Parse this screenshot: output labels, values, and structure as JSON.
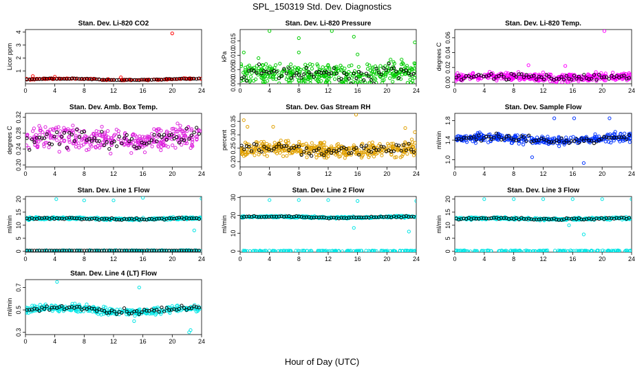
{
  "figure": {
    "title": "SPL_150319  Std. Dev. Diagnostics",
    "xlabel": "Hour of Day (UTC)"
  },
  "chart_data": [
    {
      "type": "scatter",
      "title": "Stan. Dev. Li-820 CO2",
      "ylabel": "Licor ppm",
      "xlim": [
        0,
        24
      ],
      "ylim": [
        0,
        4.2
      ],
      "xticks": [
        "0",
        "4",
        "8",
        "12",
        "16",
        "20",
        "24"
      ],
      "yticks": [
        {
          "v": 1,
          "l": "1"
        },
        {
          "v": 2,
          "l": "2"
        },
        {
          "v": 3,
          "l": "3"
        },
        {
          "v": 4,
          "l": "4"
        }
      ],
      "colors": {
        "primary": "#ff0000",
        "secondary": "#000000"
      },
      "profile": {
        "base": 0.35,
        "amp": 0.05,
        "spread": 0.05,
        "n": 150,
        "lo": 0.25
      },
      "series": [
        {
          "role": "primary",
          "values": [
            {
              "x": 20,
              "y": 3.9
            },
            {
              "x": 1,
              "y": 0.6
            },
            {
              "x": 4,
              "y": 0.55
            },
            {
              "x": 13,
              "y": 0.5
            }
          ]
        }
      ]
    },
    {
      "type": "scatter",
      "title": "Stan. Dev. Li-820 Pressure",
      "ylabel": "kPa",
      "xlim": [
        0,
        24
      ],
      "ylim": [
        0,
        0.019
      ],
      "xticks": [
        "0",
        "4",
        "8",
        "12",
        "16",
        "20",
        "24"
      ],
      "yticks": [
        {
          "v": 0,
          "l": "0.000"
        },
        {
          "v": 0.005,
          "l": "0.005"
        },
        {
          "v": 0.01,
          "l": "0.010"
        },
        {
          "v": 0.015,
          "l": "0.015"
        }
      ],
      "colors": {
        "primary": "#00cc00",
        "secondary": "#000000"
      },
      "profile": {
        "base": 0.0035,
        "amp": 0.0005,
        "spread": 0.0035,
        "n": 380,
        "lo": 0,
        "hiDense": 0.007
      },
      "series": [
        {
          "role": "primary",
          "values": [
            {
              "x": 4,
              "y": 0.0185
            },
            {
              "x": 12.5,
              "y": 0.0185
            },
            {
              "x": 8,
              "y": 0.016
            },
            {
              "x": 15.5,
              "y": 0.0165
            },
            {
              "x": 23.8,
              "y": 0.0145
            },
            {
              "x": 0.5,
              "y": 0.011
            },
            {
              "x": 8,
              "y": 0.011
            },
            {
              "x": 16,
              "y": 0.0103
            },
            {
              "x": 20.5,
              "y": 0.0085
            },
            {
              "x": 22,
              "y": 0.0085
            },
            {
              "x": 2.5,
              "y": 0.009
            }
          ]
        }
      ]
    },
    {
      "type": "scatter",
      "title": "Stan. Dev. Li-820 Temp.",
      "ylabel": "degrees C",
      "xlim": [
        0,
        24
      ],
      "ylim": [
        -0.002,
        0.071
      ],
      "xticks": [
        "0",
        "4",
        "8",
        "12",
        "16",
        "20",
        "24"
      ],
      "yticks": [
        {
          "v": 0,
          "l": "0.00"
        },
        {
          "v": 0.02,
          "l": "0.02"
        },
        {
          "v": 0.04,
          "l": "0.04"
        },
        {
          "v": 0.06,
          "l": "0.06"
        }
      ],
      "colors": {
        "primary": "#ff00ff",
        "secondary": "#000000"
      },
      "profile": {
        "base": 0.007,
        "amp": 0.001,
        "spread": 0.006,
        "n": 380,
        "lo": 0
      },
      "series": [
        {
          "role": "primary",
          "values": [
            {
              "x": 20.3,
              "y": 0.069
            },
            {
              "x": 10,
              "y": 0.023
            },
            {
              "x": 15,
              "y": 0.022
            }
          ]
        }
      ]
    },
    {
      "type": "scatter",
      "title": "Stan. Dev. Amb. Box Temp.",
      "ylabel": "degrees C",
      "xlim": [
        0,
        24
      ],
      "ylim": [
        0.195,
        0.33
      ],
      "xticks": [
        "0",
        "4",
        "8",
        "12",
        "16",
        "20",
        "24"
      ],
      "yticks": [
        {
          "v": 0.2,
          "l": "0.20"
        },
        {
          "v": 0.24,
          "l": "0.24"
        },
        {
          "v": 0.28,
          "l": "0.28"
        },
        {
          "v": 0.32,
          "l": "0.32"
        }
      ],
      "colors": {
        "primary": "#dd22dd",
        "secondary": "#000000"
      },
      "profile": {
        "base": 0.265,
        "amp": 0.005,
        "spread": 0.03,
        "n": 360,
        "lo": 0.2,
        "hi": 0.325
      },
      "series": [
        {
          "role": "primary",
          "values": []
        }
      ]
    },
    {
      "type": "scatter",
      "title": "Stan. Dev. Gas Stream RH",
      "ylabel": "percent",
      "xlim": [
        0,
        24
      ],
      "ylim": [
        0.18,
        0.38
      ],
      "xticks": [
        "0",
        "4",
        "8",
        "12",
        "16",
        "20",
        "24"
      ],
      "yticks": [
        {
          "v": 0.2,
          "l": "0.20"
        },
        {
          "v": 0.25,
          "l": "0.25"
        },
        {
          "v": 0.3,
          "l": "0.30"
        },
        {
          "v": 0.35,
          "l": "0.35"
        }
      ],
      "colors": {
        "primary": "#e0a000",
        "secondary": "#000000"
      },
      "profile": {
        "base": 0.245,
        "amp": 0.005,
        "spread": 0.03,
        "n": 420,
        "lo": 0.2,
        "hi": 0.37
      },
      "series": [
        {
          "role": "primary",
          "values": [
            {
              "x": 15.8,
              "y": 0.375
            },
            {
              "x": 0.5,
              "y": 0.355
            },
            {
              "x": 1,
              "y": 0.33
            },
            {
              "x": 4.5,
              "y": 0.33
            },
            {
              "x": 22.5,
              "y": 0.325
            },
            {
              "x": 23.8,
              "y": 0.31
            }
          ]
        }
      ]
    },
    {
      "type": "scatter",
      "title": "Stan. Dev. Sample Flow",
      "ylabel": "ml/min",
      "xlim": [
        0,
        24
      ],
      "ylim": [
        0.85,
        1.95
      ],
      "xticks": [
        "0",
        "4",
        "8",
        "12",
        "16",
        "20",
        "24"
      ],
      "yticks": [
        {
          "v": 1.0,
          "l": "1.0"
        },
        {
          "v": 1.4,
          "l": "1.4"
        },
        {
          "v": 1.8,
          "l": "1.8"
        }
      ],
      "colors": {
        "primary": "#0033ff",
        "secondary": "#000000"
      },
      "profile": {
        "base": 1.42,
        "amp": 0.04,
        "spread": 0.1,
        "n": 360,
        "lo": 1.0,
        "hi": 1.9
      },
      "series": [
        {
          "role": "primary",
          "values": [
            {
              "x": 17.5,
              "y": 0.93
            },
            {
              "x": 10.5,
              "y": 1.05
            },
            {
              "x": 13.5,
              "y": 1.85
            },
            {
              "x": 16.2,
              "y": 1.85
            },
            {
              "x": 21,
              "y": 1.85
            }
          ]
        }
      ]
    },
    {
      "type": "scatter",
      "title": "Stan. Dev. Line 1 Flow",
      "ylabel": "ml/min",
      "xlim": [
        0,
        24
      ],
      "ylim": [
        -0.3,
        21
      ],
      "xticks": [
        "0",
        "4",
        "8",
        "12",
        "16",
        "20",
        "24"
      ],
      "yticks": [
        {
          "v": 0,
          "l": "0"
        },
        {
          "v": 5,
          "l": "5"
        },
        {
          "v": 10,
          "l": "10"
        },
        {
          "v": 15,
          "l": "15"
        },
        {
          "v": 20,
          "l": "20"
        }
      ],
      "colors": {
        "primary": "#00e5e5",
        "secondary": "#000000"
      },
      "profile": {
        "base": 12.5,
        "amp": 0.2,
        "spread": 0.5,
        "n": 360,
        "band2": 1.0,
        "blackBand": 1.0
      },
      "series": [
        {
          "role": "primary",
          "values": [
            {
              "x": 4.2,
              "y": 20
            },
            {
              "x": 8,
              "y": 19.5
            },
            {
              "x": 12,
              "y": 19.5
            },
            {
              "x": 16,
              "y": 20.5
            },
            {
              "x": 24,
              "y": 20.2
            },
            {
              "x": 23,
              "y": 8
            }
          ]
        }
      ]
    },
    {
      "type": "scatter",
      "title": "Stan. Dev. Line 2 Flow",
      "ylabel": "ml/min",
      "xlim": [
        0,
        24
      ],
      "ylim": [
        -0.5,
        30.5
      ],
      "xticks": [
        "0",
        "4",
        "8",
        "12",
        "16",
        "20",
        "24"
      ],
      "yticks": [
        {
          "v": 0,
          "l": "0"
        },
        {
          "v": 10,
          "l": "10"
        },
        {
          "v": 20,
          "l": "20"
        },
        {
          "v": 30,
          "l": "30"
        }
      ],
      "colors": {
        "primary": "#00e5e5",
        "secondary": "#000000"
      },
      "profile": {
        "base": 19,
        "amp": 0.3,
        "spread": 0.6,
        "n": 360,
        "band2": 0.8
      },
      "series": [
        {
          "role": "primary",
          "values": [
            {
              "x": 4,
              "y": 28.5
            },
            {
              "x": 8,
              "y": 28.5
            },
            {
              "x": 12,
              "y": 28.5
            },
            {
              "x": 16,
              "y": 28
            },
            {
              "x": 24,
              "y": 28
            },
            {
              "x": 15.5,
              "y": 13
            },
            {
              "x": 23,
              "y": 11
            }
          ]
        }
      ]
    },
    {
      "type": "scatter",
      "title": "Stan. Dev. Line 3 Flow",
      "ylabel": "ml/min",
      "xlim": [
        0,
        24
      ],
      "ylim": [
        -0.3,
        21
      ],
      "xticks": [
        "0",
        "4",
        "8",
        "12",
        "16",
        "20",
        "24"
      ],
      "yticks": [
        {
          "v": 0,
          "l": "0"
        },
        {
          "v": 5,
          "l": "5"
        },
        {
          "v": 10,
          "l": "10"
        },
        {
          "v": 15,
          "l": "15"
        },
        {
          "v": 20,
          "l": "20"
        }
      ],
      "colors": {
        "primary": "#00e5e5",
        "secondary": "#000000"
      },
      "profile": {
        "base": 12.5,
        "amp": 0.2,
        "spread": 0.5,
        "n": 360,
        "band2": 0.8
      },
      "series": [
        {
          "role": "primary",
          "values": [
            {
              "x": 4,
              "y": 20
            },
            {
              "x": 8,
              "y": 20
            },
            {
              "x": 12,
              "y": 20
            },
            {
              "x": 16,
              "y": 20
            },
            {
              "x": 20,
              "y": 20
            },
            {
              "x": 24,
              "y": 20
            },
            {
              "x": 15.5,
              "y": 10
            },
            {
              "x": 17.5,
              "y": 6.5
            }
          ]
        }
      ]
    },
    {
      "type": "scatter",
      "title": "Stan. Dev. Line 4 (LT) Flow",
      "ylabel": "ml/min",
      "xlim": [
        0,
        24
      ],
      "ylim": [
        0.28,
        0.77
      ],
      "xticks": [
        "0",
        "4",
        "8",
        "12",
        "16",
        "20",
        "24"
      ],
      "yticks": [
        {
          "v": 0.3,
          "l": "0.3"
        },
        {
          "v": 0.5,
          "l": "0.5"
        },
        {
          "v": 0.7,
          "l": "0.7"
        }
      ],
      "colors": {
        "primary": "#00e5e5",
        "secondary": "#000000"
      },
      "profile": {
        "base": 0.5,
        "amp": 0.02,
        "spread": 0.035,
        "n": 340,
        "lo": 0.38,
        "hi": 0.7
      },
      "series": [
        {
          "role": "primary",
          "values": [
            {
              "x": 4.3,
              "y": 0.75
            },
            {
              "x": 15.5,
              "y": 0.7
            },
            {
              "x": 22.5,
              "y": 0.32
            },
            {
              "x": 22.3,
              "y": 0.3
            },
            {
              "x": 14.8,
              "y": 0.4
            }
          ]
        }
      ]
    }
  ]
}
